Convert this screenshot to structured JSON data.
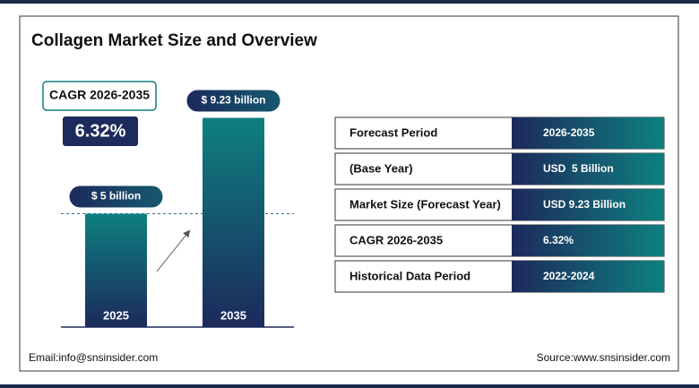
{
  "title": "Collagen Market Size and Overview",
  "cagr": {
    "label": "CAGR 2026-2035",
    "value": "6.32%"
  },
  "chart_data": {
    "type": "bar",
    "categories": [
      "2025",
      "2035"
    ],
    "values": [
      5,
      9.23
    ],
    "value_labels": [
      "$ 5 billion",
      "$ 9.23 billion"
    ]
  },
  "table": {
    "rows": [
      [
        "Forecast Period",
        "2026-2035"
      ],
      [
        "(Base Year)",
        "USD  5 Billion"
      ],
      [
        "Market Size (Forecast Year)",
        "USD 9.23 Billion"
      ],
      [
        "CAGR 2026-2035",
        "6.32%"
      ],
      [
        "Historical Data Period",
        "2022-2024"
      ]
    ]
  },
  "footer": {
    "email": "Email:info@snsinsider.com",
    "source": "Source:www.snsinsider.com"
  }
}
